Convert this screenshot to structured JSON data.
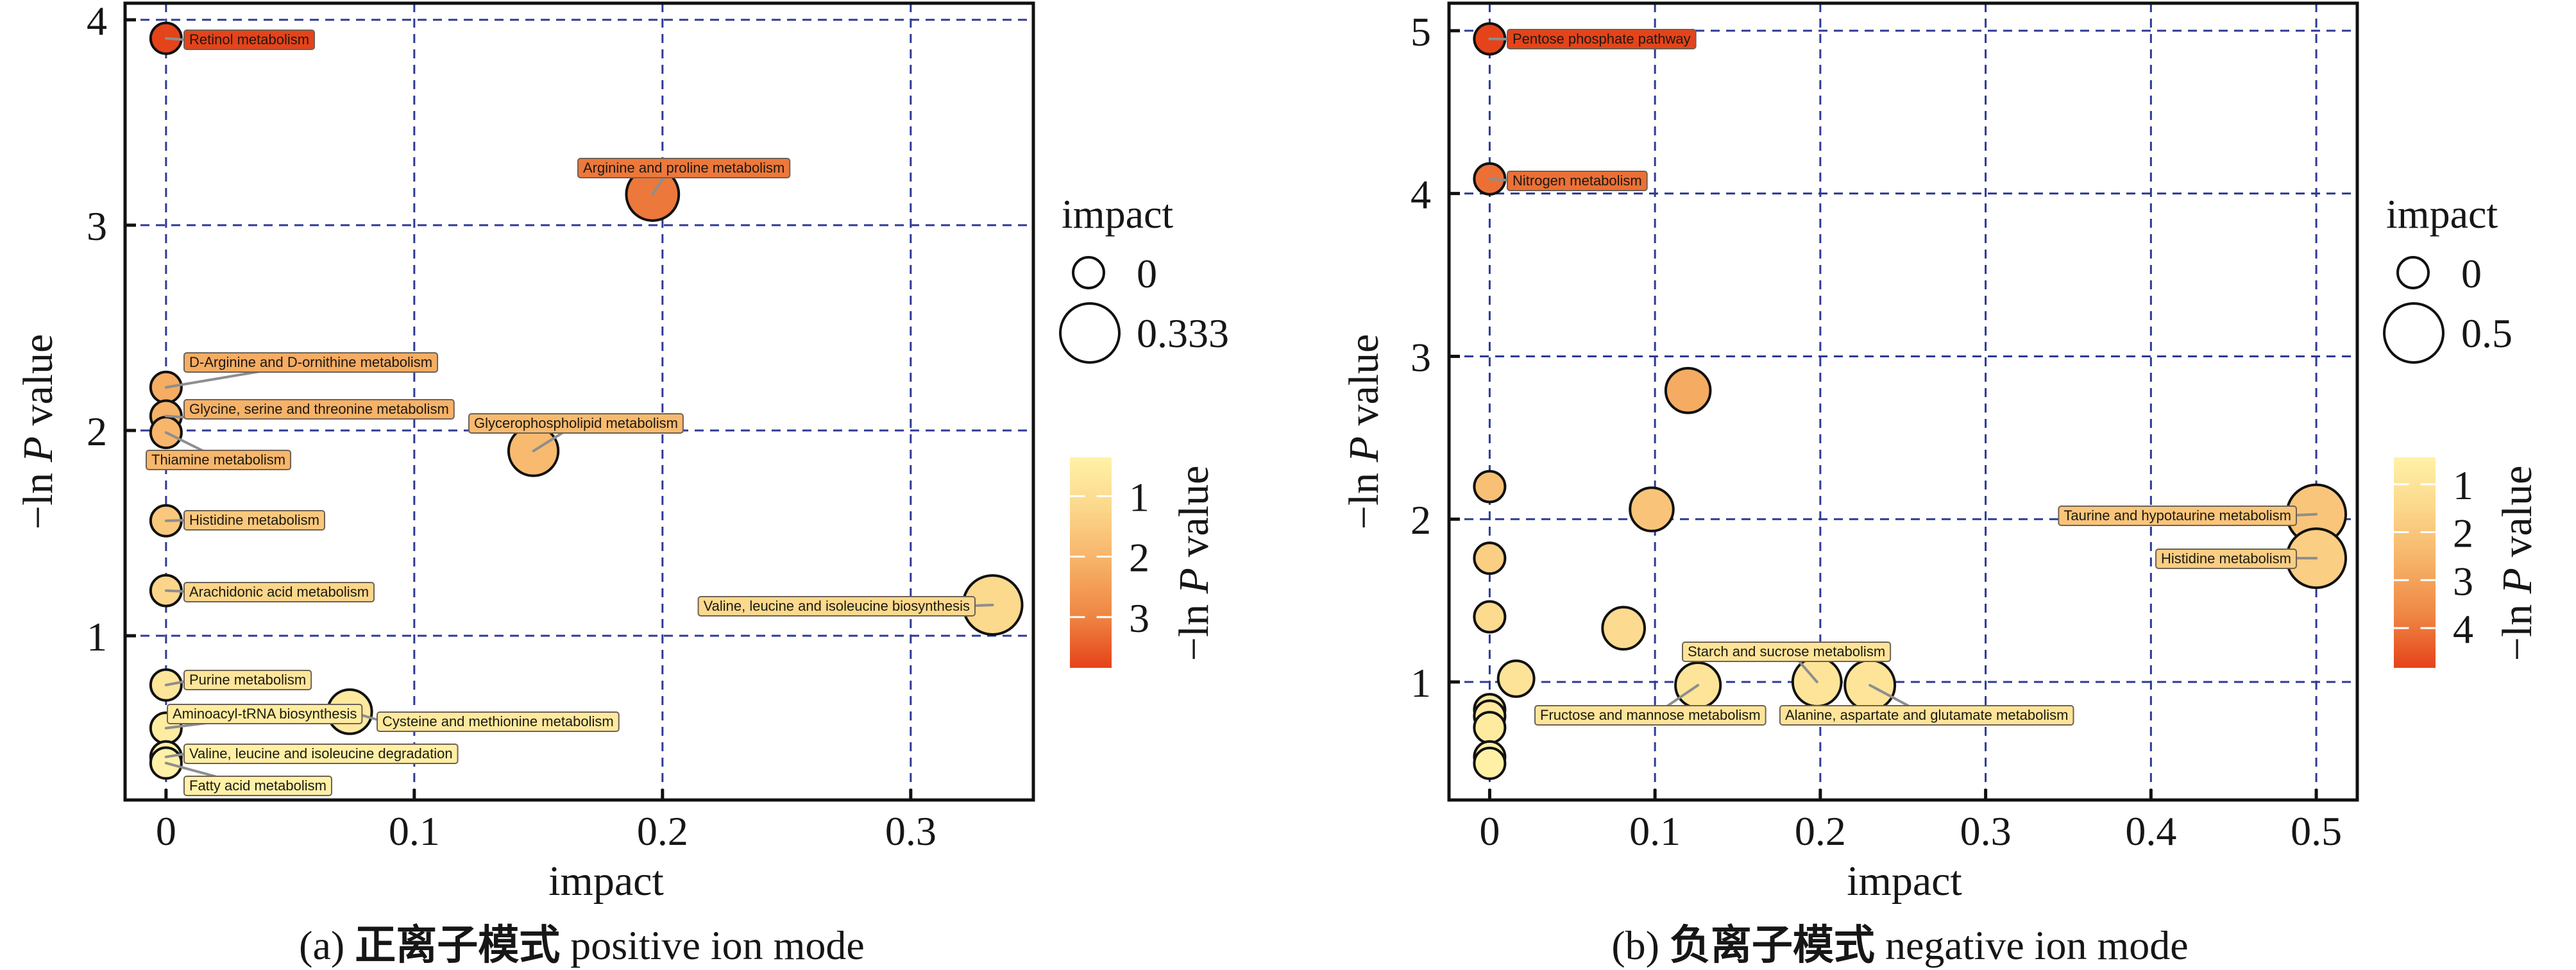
{
  "chart_data": [
    {
      "type": "scatter",
      "caption": {
        "tag": "(a)",
        "zh": "正离子模式",
        "en": "positive ion mode"
      },
      "xlabel": "impact",
      "ylabel": {
        "prefix": "−ln",
        "italic": "P",
        "suffix": "value"
      },
      "xlim": [
        -0.0165,
        0.3494
      ],
      "ylim": [
        0.2,
        4.081
      ],
      "xticks": [
        0,
        0.1,
        0.2,
        0.3
      ],
      "yticks": [
        1,
        2,
        3,
        4
      ],
      "grid": true,
      "size_legend": {
        "title": "impact",
        "entries": [
          0,
          0.333
        ]
      },
      "colorbar": {
        "title": {
          "prefix": "−ln",
          "italic": "P",
          "suffix": "value"
        },
        "ticks": [
          1,
          2,
          3
        ],
        "range": [
          0.36,
          3.84
        ]
      },
      "points": [
        {
          "label": "Retinol metabolism",
          "impact": 0,
          "neg_ln_p": 3.91
        },
        {
          "label": "Arginine and proline metabolism",
          "impact": 0.196,
          "neg_ln_p": 3.15
        },
        {
          "label": "D-Arginine and D-ornithine metabolism",
          "impact": 0,
          "neg_ln_p": 2.21
        },
        {
          "label": "Glycine, serine and threonine metabolism",
          "impact": 0,
          "neg_ln_p": 2.07
        },
        {
          "label": "Thiamine metabolism",
          "impact": 0,
          "neg_ln_p": 1.99
        },
        {
          "label": "Glycerophospholipid metabolism",
          "impact": 0.148,
          "neg_ln_p": 1.9
        },
        {
          "label": "Histidine metabolism",
          "impact": 0,
          "neg_ln_p": 1.56
        },
        {
          "label": "Arachidonic acid metabolism",
          "impact": 0,
          "neg_ln_p": 1.22
        },
        {
          "label": "Valine, leucine and isoleucine biosynthesis",
          "impact": 0.333,
          "neg_ln_p": 1.15
        },
        {
          "label": "Purine metabolism",
          "impact": 0,
          "neg_ln_p": 0.76
        },
        {
          "label": "Cysteine and methionine metabolism",
          "impact": 0.074,
          "neg_ln_p": 0.63
        },
        {
          "label": "Aminoacyl-tRNA biosynthesis",
          "impact": 0,
          "neg_ln_p": 0.55
        },
        {
          "label": "Valine, leucine and isoleucine degradation",
          "impact": 0,
          "neg_ln_p": 0.41
        },
        {
          "label": "Fatty acid metabolism",
          "impact": 0,
          "neg_ln_p": 0.38
        }
      ]
    },
    {
      "type": "scatter",
      "caption": {
        "tag": "(b)",
        "zh": "负离子模式",
        "en": "negative ion mode"
      },
      "xlabel": "impact",
      "ylabel": {
        "prefix": "−ln",
        "italic": "P",
        "suffix": "value"
      },
      "xlim": [
        -0.0246,
        0.5248
      ],
      "ylim": [
        0.275,
        5.169
      ],
      "xticks": [
        0,
        0.1,
        0.2,
        0.3,
        0.4,
        0.5
      ],
      "yticks": [
        1,
        2,
        3,
        4,
        5
      ],
      "grid": true,
      "size_legend": {
        "title": "impact",
        "entries": [
          0,
          0.5
        ]
      },
      "colorbar": {
        "title": {
          "prefix": "−ln",
          "italic": "P",
          "suffix": "value"
        },
        "ticks": [
          1,
          2,
          3,
          4
        ],
        "range": [
          0.44,
          4.83
        ]
      },
      "points": [
        {
          "label": "Pentose phosphate pathway",
          "impact": 0,
          "neg_ln_p": 4.95
        },
        {
          "label": "Nitrogen metabolism",
          "impact": 0,
          "neg_ln_p": 4.09
        },
        {
          "label": null,
          "impact": 0.12,
          "neg_ln_p": 2.79
        },
        {
          "label": null,
          "impact": 0,
          "neg_ln_p": 2.2
        },
        {
          "label": null,
          "impact": 0.098,
          "neg_ln_p": 2.06
        },
        {
          "label": "Taurine and hypotaurine metabolism",
          "impact": 0.5,
          "neg_ln_p": 2.03
        },
        {
          "label": null,
          "impact": 0,
          "neg_ln_p": 1.76
        },
        {
          "label": "Histidine metabolism",
          "impact": 0.5,
          "neg_ln_p": 1.76
        },
        {
          "label": null,
          "impact": 0,
          "neg_ln_p": 1.4
        },
        {
          "label": null,
          "impact": 0.081,
          "neg_ln_p": 1.33
        },
        {
          "label": null,
          "impact": 0.016,
          "neg_ln_p": 1.02
        },
        {
          "label": "Starch and sucrose metabolism",
          "impact": 0.198,
          "neg_ln_p": 1.0
        },
        {
          "label": "Fructose and mannose metabolism",
          "impact": 0.126,
          "neg_ln_p": 0.98
        },
        {
          "label": "Alanine, aspartate and glutamate metabolism",
          "impact": 0.23,
          "neg_ln_p": 0.98
        },
        {
          "label": null,
          "impact": 0,
          "neg_ln_p": 0.83
        },
        {
          "label": null,
          "impact": 0,
          "neg_ln_p": 0.79
        },
        {
          "label": null,
          "impact": 0,
          "neg_ln_p": 0.72
        },
        {
          "label": null,
          "impact": 0,
          "neg_ln_p": 0.54
        },
        {
          "label": null,
          "impact": 0,
          "neg_ln_p": 0.5
        }
      ]
    }
  ],
  "colors": {
    "grid": "#2E3A94",
    "frame": "#111111",
    "point_outline": "#111111",
    "connector": "#8E8E8E",
    "label_border": "#6E6254",
    "colorbar_tick": "#FFFFFF",
    "colormap": [
      "#FFF2A8",
      "#FBD68A",
      "#F6B167",
      "#EF8644",
      "#E5431A"
    ]
  }
}
